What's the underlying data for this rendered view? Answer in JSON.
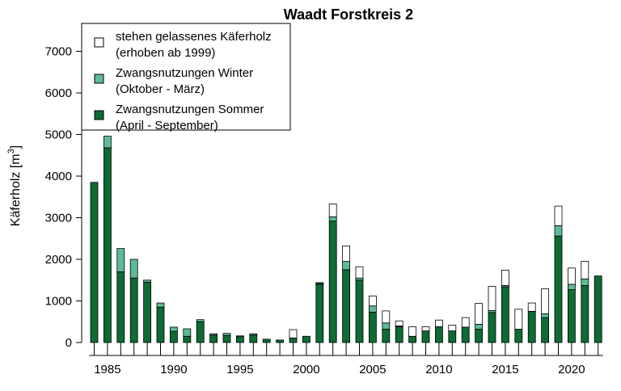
{
  "chart_data": {
    "type": "bar",
    "stacked": true,
    "title": "Waadt Forstkreis 2",
    "ylabel": "Käferholz [m",
    "ylabel_sup": "3",
    "ylabel_close": "]",
    "ylim": [
      0,
      7500
    ],
    "yticks": [
      0,
      1000,
      2000,
      3000,
      4000,
      5000,
      6000,
      7000
    ],
    "xticks": [
      1985,
      1990,
      1995,
      2000,
      2005,
      2010,
      2015,
      2020
    ],
    "years": [
      1984,
      1985,
      1986,
      1987,
      1988,
      1989,
      1990,
      1991,
      1992,
      1993,
      1994,
      1995,
      1996,
      1997,
      1998,
      1999,
      2000,
      2001,
      2002,
      2003,
      2004,
      2005,
      2006,
      2007,
      2008,
      2009,
      2010,
      2011,
      2012,
      2013,
      2014,
      2015,
      2016,
      2017,
      2018,
      2019,
      2020,
      2021,
      2022
    ],
    "legend_placement": "top-left",
    "series": [
      {
        "key": "summer",
        "name": "Zwangsnutzungen Sommer",
        "name_line2": "(April - September)",
        "color": "#0d6b33",
        "values": [
          3850,
          4680,
          1700,
          1550,
          1450,
          850,
          270,
          150,
          500,
          180,
          170,
          140,
          180,
          80,
          60,
          110,
          150,
          1400,
          2920,
          1750,
          1500,
          730,
          320,
          380,
          150,
          280,
          380,
          280,
          370,
          320,
          720,
          1340,
          320,
          750,
          600,
          2560,
          1270,
          1370,
          1600
        ]
      },
      {
        "key": "winter",
        "name": "Zwangsnutzungen Winter",
        "name_line2": "(Oktober - März)",
        "color": "#5dbb96",
        "values": [
          0,
          280,
          560,
          450,
          50,
          100,
          100,
          180,
          50,
          30,
          50,
          20,
          30,
          0,
          0,
          0,
          0,
          20,
          100,
          200,
          50,
          150,
          150,
          20,
          0,
          0,
          0,
          0,
          0,
          120,
          50,
          30,
          0,
          0,
          90,
          250,
          130,
          160,
          0
        ]
      },
      {
        "key": "standing",
        "name": "stehen gelassenes Käferholz",
        "name_line2": "(erhoben ab 1999)",
        "color": "#ffffff",
        "values": [
          0,
          0,
          0,
          0,
          0,
          0,
          0,
          0,
          0,
          0,
          0,
          0,
          0,
          0,
          0,
          200,
          0,
          20,
          310,
          370,
          270,
          240,
          290,
          120,
          230,
          100,
          160,
          140,
          230,
          500,
          580,
          370,
          480,
          200,
          600,
          470,
          390,
          420,
          0
        ]
      }
    ],
    "legend_order": [
      "standing",
      "winter",
      "summer"
    ]
  }
}
